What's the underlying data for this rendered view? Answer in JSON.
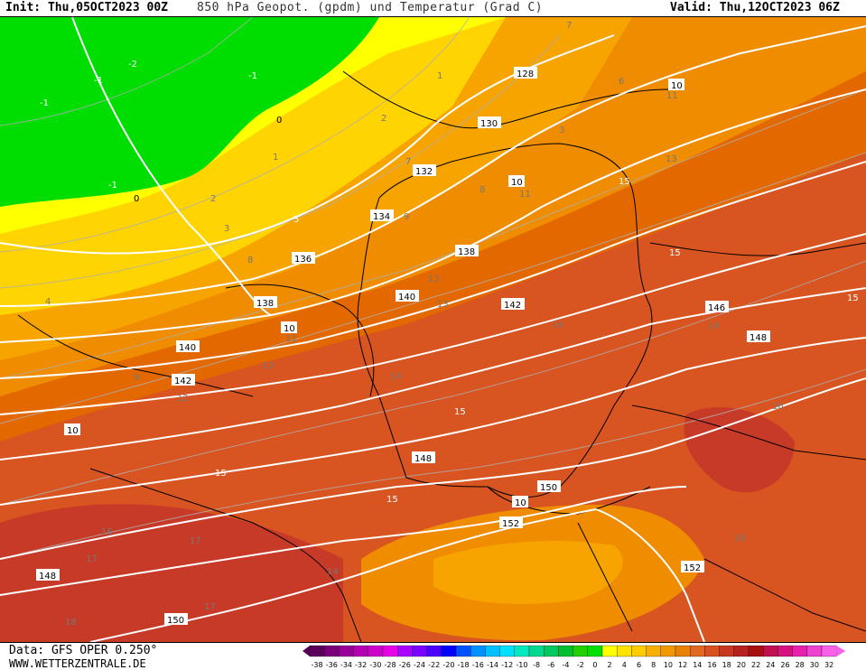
{
  "header": {
    "init": "Init: Thu,05OCT2023 00Z",
    "title": "850 hPa Geopot. (gpdm) und Temperatur (Grad C)",
    "valid": "Valid: Thu,12OCT2023 06Z"
  },
  "footer": {
    "data_source": "Data: GFS OPER 0.250°",
    "website": "WWW.WETTERZENTRALE.DE"
  },
  "legend": {
    "values": [
      "-38",
      "-36",
      "-34",
      "-32",
      "-30",
      "-28",
      "-26",
      "-24",
      "-22",
      "-20",
      "-18",
      "-16",
      "-14",
      "-12",
      "-10",
      "-8",
      "-6",
      "-4",
      "-2",
      "0",
      "2",
      "4",
      "6",
      "8",
      "10",
      "12",
      "14",
      "16",
      "18",
      "20",
      "22",
      "24",
      "26",
      "28",
      "30",
      "32"
    ],
    "colors": [
      "#5a005a",
      "#7a007a",
      "#990099",
      "#b300b3",
      "#cc00cc",
      "#e600e6",
      "#aa00ff",
      "#7a00ff",
      "#4b00ff",
      "#0000ff",
      "#0050ff",
      "#0090ff",
      "#00c0ff",
      "#00e0ff",
      "#00e8c0",
      "#00d890",
      "#00c860",
      "#00c030",
      "#20d000",
      "#00e000",
      "#ffff00",
      "#ffe400",
      "#ffcc00",
      "#f7b000",
      "#f09800",
      "#e88000",
      "#e06820",
      "#d85020",
      "#c83820",
      "#b82020",
      "#a81010",
      "#c01050",
      "#d81080",
      "#e820b0",
      "#f040d0",
      "#f860e8"
    ]
  },
  "map": {
    "zone_colors": {
      "green": "#00dd00",
      "yellow": "#ffff00",
      "gold": "#ffd400",
      "orange_light": "#f7a400",
      "orange": "#ef8c00",
      "orange_dark": "#e46800",
      "red_orange": "#d85420",
      "red": "#c83a28"
    },
    "geopotential_labels": [
      "128",
      "130",
      "132",
      "134",
      "136",
      "138",
      "140",
      "142",
      "146",
      "148",
      "148",
      "150",
      "152",
      "152",
      "140",
      "142",
      "148",
      "150",
      "10",
      "10",
      "10",
      "10",
      "10"
    ],
    "temperature_labels": [
      "-2",
      "-1",
      "-1",
      "-1",
      "-1",
      "0",
      "0",
      "1",
      "1",
      "2",
      "2",
      "3",
      "3",
      "4",
      "5",
      "6",
      "7",
      "7",
      "8",
      "8",
      "9",
      "9",
      "10",
      "11",
      "11",
      "11",
      "12",
      "12",
      "13",
      "13",
      "13",
      "14",
      "14",
      "14",
      "14",
      "15",
      "15",
      "15",
      "15",
      "15",
      "15",
      "16",
      "16",
      "16",
      "17",
      "17",
      "17",
      "18"
    ]
  }
}
